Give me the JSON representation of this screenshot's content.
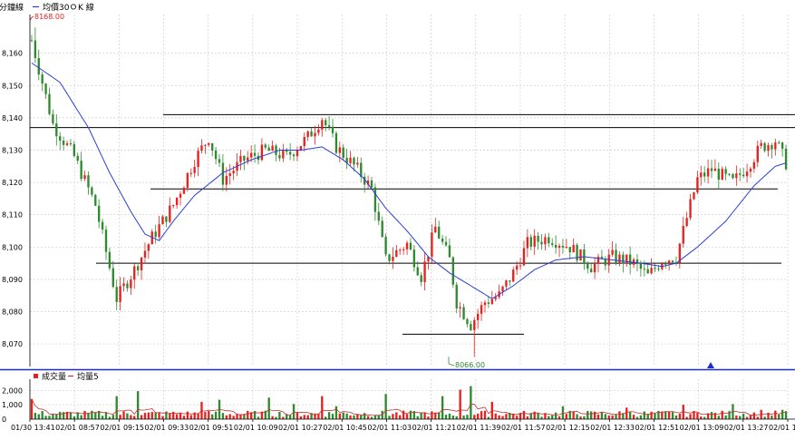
{
  "legend": {
    "title": "分鐘線",
    "ma_label": "均價30",
    "k_label": "K 線",
    "volume_label": "成交量",
    "volume_ma_label": "均量5"
  },
  "colors": {
    "up": "#e8201e",
    "down": "#2f8a2f",
    "ma": "#2b3fd9",
    "volume_ma": "#c23030",
    "grid": "#cfcfcf",
    "separator": "#1e2fc9",
    "marker": "#1e2fc9"
  },
  "chart_data": [
    {
      "type": "candlestick",
      "title": "",
      "ylim": [
        8063,
        8172
      ],
      "yticks": [
        8070,
        8080,
        8090,
        8100,
        8110,
        8120,
        8130,
        8140,
        8150,
        8160
      ],
      "ytick_labels": [
        "8,070",
        "8,080",
        "8,090",
        "8,100",
        "8,110",
        "8,120",
        "8,130",
        "8,140",
        "8,150",
        "8,160"
      ],
      "x_labels": [
        "01/30 13:41",
        "02/01 08:57",
        "02/01 09:15",
        "02/01 09:33",
        "02/01 09:51",
        "02/01 10:09",
        "02/01 10:27",
        "02/01 10:45",
        "02/01 11:03",
        "02/01 11:21",
        "02/01 11:39",
        "02/01 11:57",
        "02/01 12:15",
        "02/01 12:33",
        "02/01 12:51",
        "02/01 13:09",
        "02/01 13:27",
        "02/01 13:"
      ],
      "keypoints": [
        [
          0,
          8164
        ],
        [
          6,
          8138
        ],
        [
          12,
          8128
        ],
        [
          18,
          8113
        ],
        [
          24,
          8084
        ],
        [
          29,
          8093
        ],
        [
          34,
          8103
        ],
        [
          40,
          8113
        ],
        [
          46,
          8127
        ],
        [
          50,
          8134
        ],
        [
          54,
          8121
        ],
        [
          60,
          8127
        ],
        [
          66,
          8130
        ],
        [
          72,
          8128
        ],
        [
          78,
          8134
        ],
        [
          82,
          8140
        ],
        [
          86,
          8131
        ],
        [
          92,
          8124
        ],
        [
          96,
          8118
        ],
        [
          100,
          8096
        ],
        [
          106,
          8101
        ],
        [
          110,
          8091
        ],
        [
          114,
          8106
        ],
        [
          118,
          8096
        ],
        [
          120,
          8083
        ],
        [
          124,
          8076
        ],
        [
          128,
          8083
        ],
        [
          132,
          8085
        ],
        [
          136,
          8092
        ],
        [
          140,
          8101
        ],
        [
          146,
          8103
        ],
        [
          152,
          8100
        ],
        [
          158,
          8094
        ],
        [
          164,
          8097
        ],
        [
          170,
          8095
        ],
        [
          174,
          8091
        ],
        [
          178,
          8096
        ],
        [
          182,
          8097
        ],
        [
          188,
          8121
        ],
        [
          192,
          8124
        ],
        [
          198,
          8120
        ],
        [
          202,
          8125
        ],
        [
          206,
          8131
        ],
        [
          210,
          8133
        ],
        [
          213,
          8126
        ]
      ],
      "ma_keypoints": [
        [
          0,
          8157
        ],
        [
          8,
          8151
        ],
        [
          16,
          8137
        ],
        [
          22,
          8123
        ],
        [
          28,
          8111
        ],
        [
          32,
          8104
        ],
        [
          36,
          8102
        ],
        [
          40,
          8108
        ],
        [
          46,
          8116
        ],
        [
          54,
          8123
        ],
        [
          62,
          8127
        ],
        [
          70,
          8130
        ],
        [
          76,
          8130
        ],
        [
          82,
          8131
        ],
        [
          88,
          8127
        ],
        [
          94,
          8121
        ],
        [
          100,
          8112
        ],
        [
          106,
          8105
        ],
        [
          112,
          8097
        ],
        [
          118,
          8092
        ],
        [
          124,
          8088
        ],
        [
          130,
          8084
        ],
        [
          136,
          8088
        ],
        [
          142,
          8093
        ],
        [
          148,
          8096
        ],
        [
          156,
          8097
        ],
        [
          164,
          8096
        ],
        [
          172,
          8095
        ],
        [
          178,
          8094
        ],
        [
          182,
          8095
        ],
        [
          188,
          8100
        ],
        [
          196,
          8108
        ],
        [
          204,
          8119
        ],
        [
          210,
          8125
        ],
        [
          213,
          8126
        ]
      ],
      "candle_count": 214,
      "high": 8168,
      "low": 8066,
      "high_label": "8168.00",
      "low_label": "8066.00",
      "reference_levels": [
        8141,
        8137,
        8118,
        8095,
        8073
      ]
    },
    {
      "type": "bar",
      "title": "成交量",
      "ylim": [
        0,
        2400
      ],
      "yticks": [
        0,
        1000,
        2000
      ],
      "ytick_labels": [
        "0",
        "1,000",
        "2,000"
      ],
      "spikes": [
        [
          0,
          1400
        ],
        [
          24,
          1600
        ],
        [
          30,
          1950
        ],
        [
          48,
          1200
        ],
        [
          53,
          1350
        ],
        [
          67,
          1500
        ],
        [
          74,
          1050
        ],
        [
          82,
          1600
        ],
        [
          86,
          900
        ],
        [
          100,
          1750
        ],
        [
          116,
          1600
        ],
        [
          121,
          2050
        ],
        [
          124,
          2300
        ],
        [
          130,
          1200
        ],
        [
          150,
          900
        ],
        [
          168,
          800
        ],
        [
          184,
          1000
        ],
        [
          198,
          1050
        ],
        [
          206,
          650
        ],
        [
          212,
          650
        ]
      ]
    }
  ]
}
